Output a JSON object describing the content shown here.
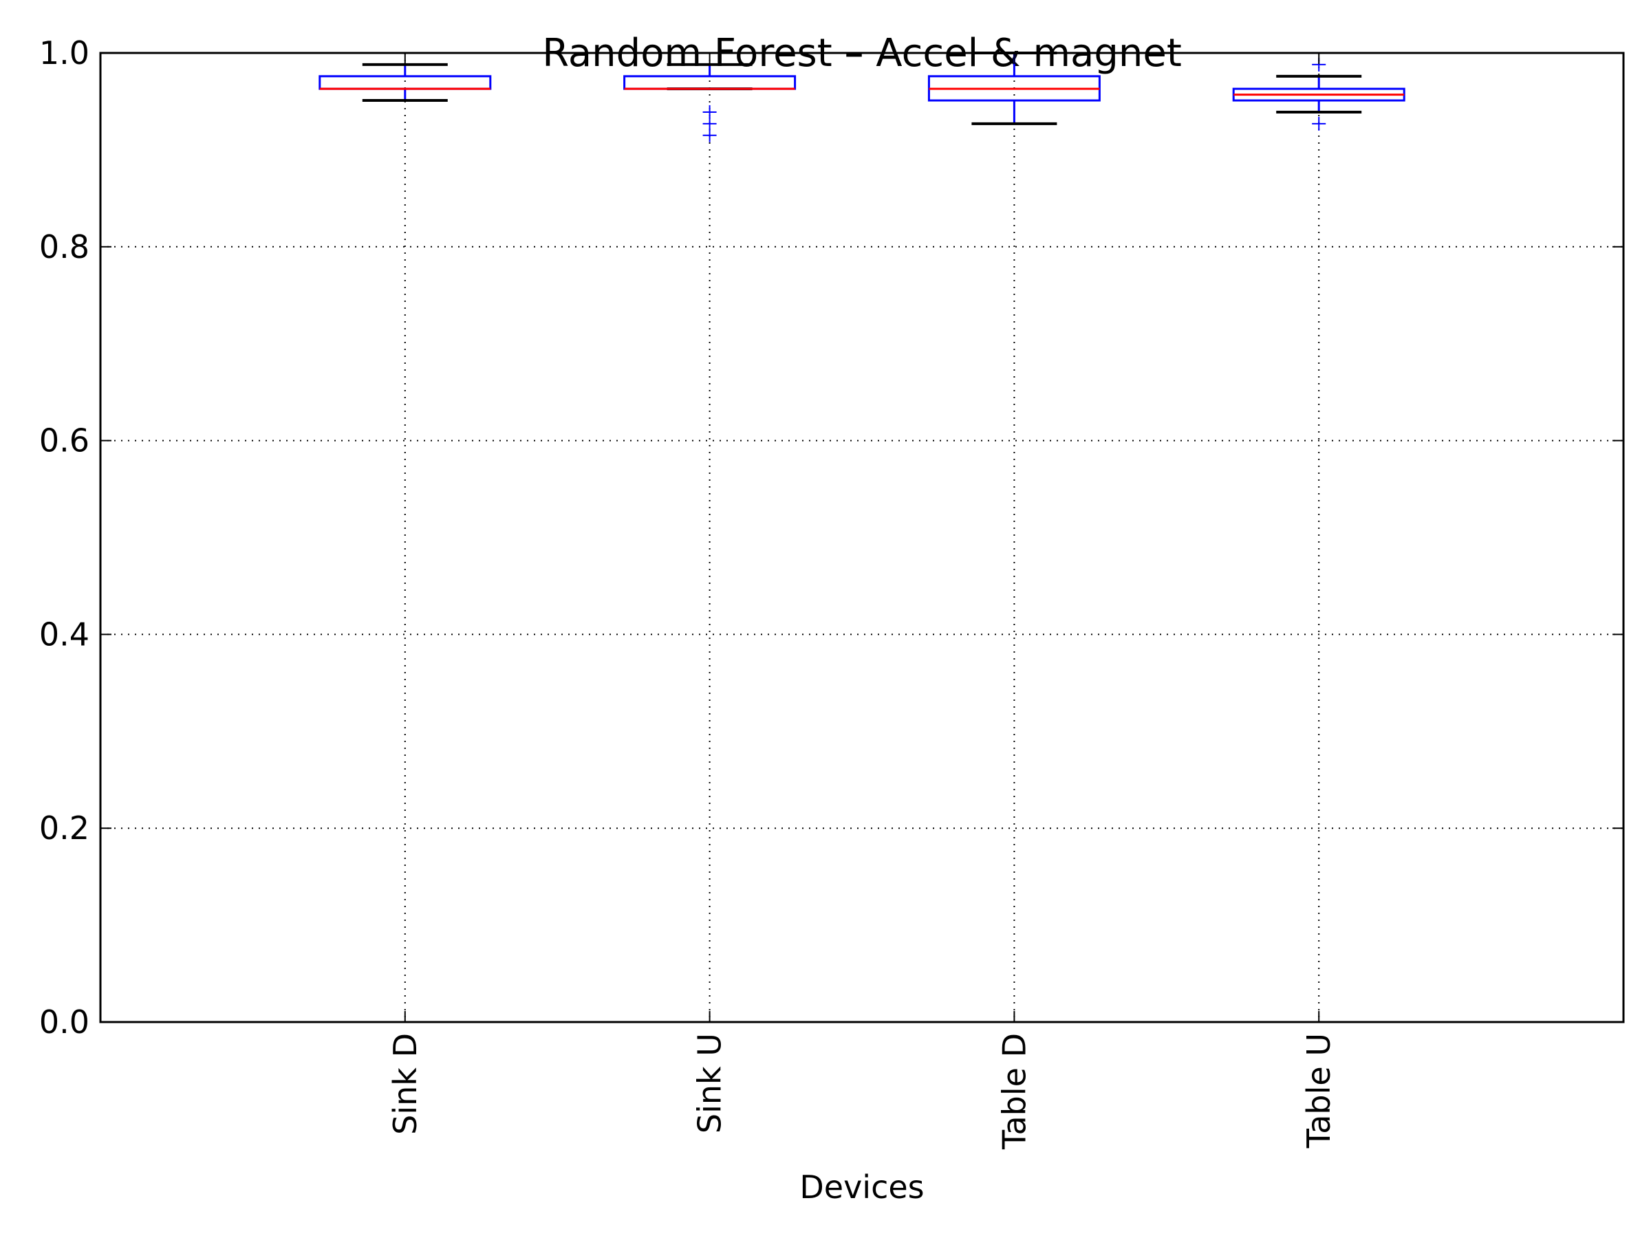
{
  "chart_data": {
    "type": "boxplot",
    "title": "Random Forest – Accel & magnet",
    "xlabel": "Devices",
    "ylabel": "",
    "ylim": [
      0.0,
      1.0
    ],
    "yticks": [
      "0.0",
      "0.2",
      "0.4",
      "0.6",
      "0.8",
      "1.0"
    ],
    "grid": true,
    "categories": [
      "Sink D",
      "Sink U",
      "Table D",
      "Table U"
    ],
    "boxes": [
      {
        "label": "Sink D",
        "whisker_low": 0.951,
        "q1": 0.963,
        "median": 0.963,
        "q3": 0.976,
        "whisker_high": 0.988,
        "outliers": []
      },
      {
        "label": "Sink U",
        "whisker_low": 0.963,
        "q1": 0.963,
        "median": 0.963,
        "q3": 0.976,
        "whisker_high": 0.988,
        "outliers": [
          0.939,
          0.927,
          0.915
        ]
      },
      {
        "label": "Table D",
        "whisker_low": 0.927,
        "q1": 0.951,
        "median": 0.963,
        "q3": 0.976,
        "whisker_high": 1.0,
        "outliers": []
      },
      {
        "label": "Table U",
        "whisker_low": 0.939,
        "q1": 0.951,
        "median": 0.957,
        "q3": 0.963,
        "whisker_high": 0.976,
        "outliers": [
          0.988,
          0.927
        ]
      }
    ],
    "colors": {
      "box": "#0000ff",
      "median": "#ff0000",
      "whisker_cap": "#000000",
      "outlier": "#0000ff",
      "grid": "#000000",
      "axes": "#000000"
    }
  }
}
